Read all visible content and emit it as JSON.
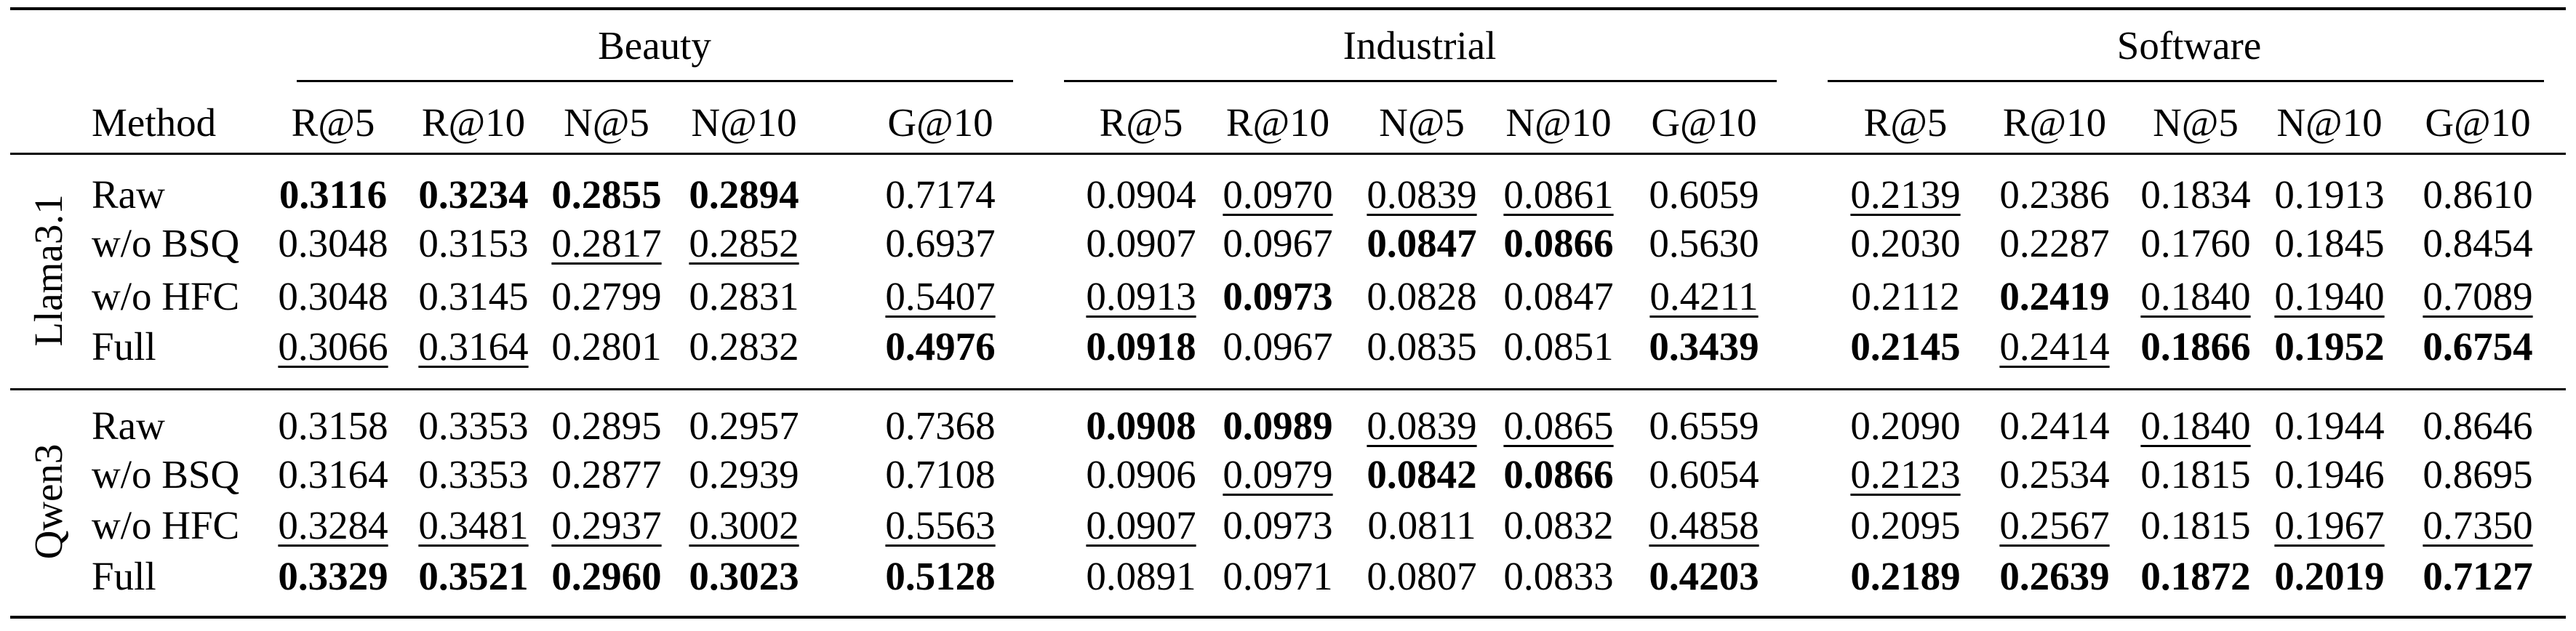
{
  "table": {
    "method_header": "Method",
    "groups": [
      "Beauty",
      "Industrial",
      "Software"
    ],
    "metrics": [
      "R@5",
      "R@10",
      "N@5",
      "N@10",
      "G@10"
    ],
    "blocks": [
      {
        "model": "Llama3.1",
        "rows": [
          {
            "method": "Raw",
            "values": [
              {
                "v": "0.3116",
                "s": "best"
              },
              {
                "v": "0.3234",
                "s": "best"
              },
              {
                "v": "0.2855",
                "s": "best"
              },
              {
                "v": "0.2894",
                "s": "best"
              },
              {
                "v": "0.7174",
                "s": ""
              },
              {
                "v": "0.0904",
                "s": ""
              },
              {
                "v": "0.0970",
                "s": "second"
              },
              {
                "v": "0.0839",
                "s": "second"
              },
              {
                "v": "0.0861",
                "s": "second"
              },
              {
                "v": "0.6059",
                "s": ""
              },
              {
                "v": "0.2139",
                "s": "second"
              },
              {
                "v": "0.2386",
                "s": ""
              },
              {
                "v": "0.1834",
                "s": ""
              },
              {
                "v": "0.1913",
                "s": ""
              },
              {
                "v": "0.8610",
                "s": ""
              }
            ]
          },
          {
            "method": "w/o BSQ",
            "values": [
              {
                "v": "0.3048",
                "s": ""
              },
              {
                "v": "0.3153",
                "s": ""
              },
              {
                "v": "0.2817",
                "s": "second"
              },
              {
                "v": "0.2852",
                "s": "second"
              },
              {
                "v": "0.6937",
                "s": ""
              },
              {
                "v": "0.0907",
                "s": ""
              },
              {
                "v": "0.0967",
                "s": ""
              },
              {
                "v": "0.0847",
                "s": "best"
              },
              {
                "v": "0.0866",
                "s": "best"
              },
              {
                "v": "0.5630",
                "s": ""
              },
              {
                "v": "0.2030",
                "s": ""
              },
              {
                "v": "0.2287",
                "s": ""
              },
              {
                "v": "0.1760",
                "s": ""
              },
              {
                "v": "0.1845",
                "s": ""
              },
              {
                "v": "0.8454",
                "s": ""
              }
            ]
          },
          {
            "method": "w/o HFC",
            "values": [
              {
                "v": "0.3048",
                "s": ""
              },
              {
                "v": "0.3145",
                "s": ""
              },
              {
                "v": "0.2799",
                "s": ""
              },
              {
                "v": "0.2831",
                "s": ""
              },
              {
                "v": "0.5407",
                "s": "second"
              },
              {
                "v": "0.0913",
                "s": "second"
              },
              {
                "v": "0.0973",
                "s": "best"
              },
              {
                "v": "0.0828",
                "s": ""
              },
              {
                "v": "0.0847",
                "s": ""
              },
              {
                "v": "0.4211",
                "s": "second"
              },
              {
                "v": "0.2112",
                "s": ""
              },
              {
                "v": "0.2419",
                "s": "best"
              },
              {
                "v": "0.1840",
                "s": "second"
              },
              {
                "v": "0.1940",
                "s": "second"
              },
              {
                "v": "0.7089",
                "s": "second"
              }
            ]
          },
          {
            "method": "Full",
            "values": [
              {
                "v": "0.3066",
                "s": "second"
              },
              {
                "v": "0.3164",
                "s": "second"
              },
              {
                "v": "0.2801",
                "s": ""
              },
              {
                "v": "0.2832",
                "s": ""
              },
              {
                "v": "0.4976",
                "s": "best"
              },
              {
                "v": "0.0918",
                "s": "best"
              },
              {
                "v": "0.0967",
                "s": ""
              },
              {
                "v": "0.0835",
                "s": ""
              },
              {
                "v": "0.0851",
                "s": ""
              },
              {
                "v": "0.3439",
                "s": "best"
              },
              {
                "v": "0.2145",
                "s": "best"
              },
              {
                "v": "0.2414",
                "s": "second"
              },
              {
                "v": "0.1866",
                "s": "best"
              },
              {
                "v": "0.1952",
                "s": "best"
              },
              {
                "v": "0.6754",
                "s": "best"
              }
            ]
          }
        ]
      },
      {
        "model": "Qwen3",
        "rows": [
          {
            "method": "Raw",
            "values": [
              {
                "v": "0.3158",
                "s": ""
              },
              {
                "v": "0.3353",
                "s": ""
              },
              {
                "v": "0.2895",
                "s": ""
              },
              {
                "v": "0.2957",
                "s": ""
              },
              {
                "v": "0.7368",
                "s": ""
              },
              {
                "v": "0.0908",
                "s": "best"
              },
              {
                "v": "0.0989",
                "s": "best"
              },
              {
                "v": "0.0839",
                "s": "second"
              },
              {
                "v": "0.0865",
                "s": "second"
              },
              {
                "v": "0.6559",
                "s": ""
              },
              {
                "v": "0.2090",
                "s": ""
              },
              {
                "v": "0.2414",
                "s": ""
              },
              {
                "v": "0.1840",
                "s": "second"
              },
              {
                "v": "0.1944",
                "s": ""
              },
              {
                "v": "0.8646",
                "s": ""
              }
            ]
          },
          {
            "method": "w/o BSQ",
            "values": [
              {
                "v": "0.3164",
                "s": ""
              },
              {
                "v": "0.3353",
                "s": ""
              },
              {
                "v": "0.2877",
                "s": ""
              },
              {
                "v": "0.2939",
                "s": ""
              },
              {
                "v": "0.7108",
                "s": ""
              },
              {
                "v": "0.0906",
                "s": ""
              },
              {
                "v": "0.0979",
                "s": "second"
              },
              {
                "v": "0.0842",
                "s": "best"
              },
              {
                "v": "0.0866",
                "s": "best"
              },
              {
                "v": "0.6054",
                "s": ""
              },
              {
                "v": "0.2123",
                "s": "second"
              },
              {
                "v": "0.2534",
                "s": ""
              },
              {
                "v": "0.1815",
                "s": ""
              },
              {
                "v": "0.1946",
                "s": ""
              },
              {
                "v": "0.8695",
                "s": ""
              }
            ]
          },
          {
            "method": "w/o HFC",
            "values": [
              {
                "v": "0.3284",
                "s": "second"
              },
              {
                "v": "0.3481",
                "s": "second"
              },
              {
                "v": "0.2937",
                "s": "second"
              },
              {
                "v": "0.3002",
                "s": "second"
              },
              {
                "v": "0.5563",
                "s": "second"
              },
              {
                "v": "0.0907",
                "s": "second"
              },
              {
                "v": "0.0973",
                "s": ""
              },
              {
                "v": "0.0811",
                "s": ""
              },
              {
                "v": "0.0832",
                "s": ""
              },
              {
                "v": "0.4858",
                "s": "second"
              },
              {
                "v": "0.2095",
                "s": ""
              },
              {
                "v": "0.2567",
                "s": "second"
              },
              {
                "v": "0.1815",
                "s": ""
              },
              {
                "v": "0.1967",
                "s": "second"
              },
              {
                "v": "0.7350",
                "s": "second"
              }
            ]
          },
          {
            "method": "Full",
            "values": [
              {
                "v": "0.3329",
                "s": "best"
              },
              {
                "v": "0.3521",
                "s": "best"
              },
              {
                "v": "0.2960",
                "s": "best"
              },
              {
                "v": "0.3023",
                "s": "best"
              },
              {
                "v": "0.5128",
                "s": "best"
              },
              {
                "v": "0.0891",
                "s": ""
              },
              {
                "v": "0.0971",
                "s": ""
              },
              {
                "v": "0.0807",
                "s": ""
              },
              {
                "v": "0.0833",
                "s": ""
              },
              {
                "v": "0.4203",
                "s": "best"
              },
              {
                "v": "0.2189",
                "s": "best"
              },
              {
                "v": "0.2639",
                "s": "best"
              },
              {
                "v": "0.1872",
                "s": "best"
              },
              {
                "v": "0.2019",
                "s": "best"
              },
              {
                "v": "0.7127",
                "s": "best"
              }
            ]
          }
        ]
      }
    ]
  }
}
